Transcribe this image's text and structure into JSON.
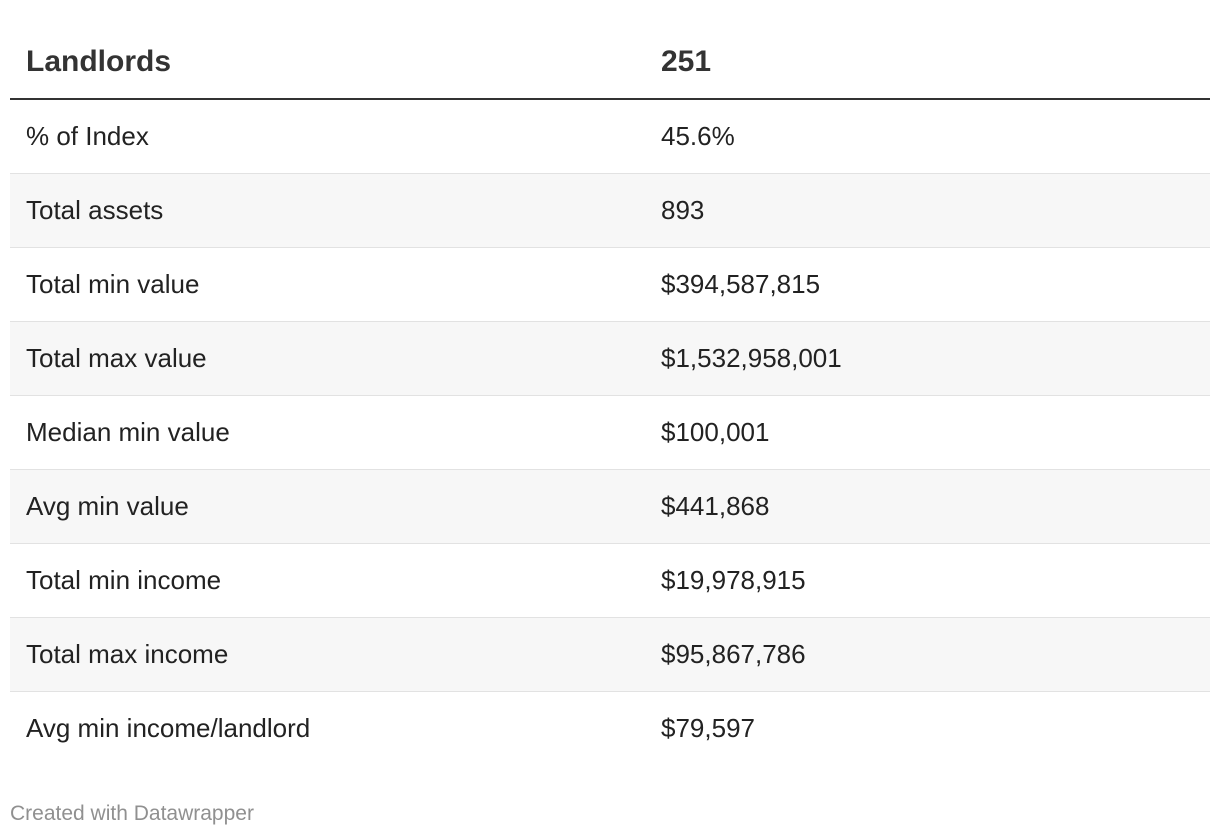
{
  "chart_data": {
    "type": "table",
    "columns": [
      "Landlords",
      "251"
    ],
    "rows": [
      {
        "label": "% of Index",
        "value": "45.6%"
      },
      {
        "label": "Total assets",
        "value": "893"
      },
      {
        "label": "Total min value",
        "value": "$394,587,815"
      },
      {
        "label": "Total max value",
        "value": "$1,532,958,001"
      },
      {
        "label": "Median min value",
        "value": "$100,001"
      },
      {
        "label": "Avg min value",
        "value": "$441,868"
      },
      {
        "label": "Total min income",
        "value": "$19,978,915"
      },
      {
        "label": "Total max income",
        "value": "$95,867,786"
      },
      {
        "label": "Avg min income/landlord",
        "value": "$79,597"
      }
    ]
  },
  "footer": {
    "credit": "Created with Datawrapper"
  },
  "colors": {
    "text": "#333333",
    "stripe": "#f7f7f7",
    "row_border": "#e2e2e2",
    "credit": "#909090"
  }
}
